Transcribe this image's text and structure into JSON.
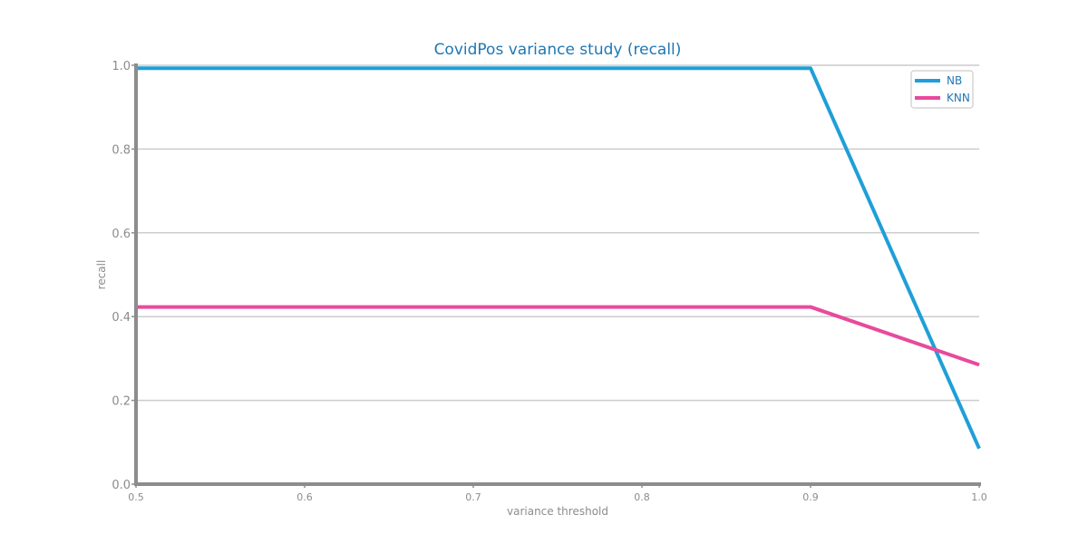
{
  "chart_data": {
    "type": "line",
    "title": "CovidPos variance study (recall)",
    "xlabel": "variance threshold",
    "ylabel": "recall",
    "x": [
      0.5,
      0.6,
      0.7,
      0.8,
      0.9,
      1.0
    ],
    "xlim": [
      0.5,
      1.0
    ],
    "ylim": [
      0.0,
      1.0
    ],
    "xticks": [
      "0.5",
      "0.6",
      "0.7",
      "0.8",
      "0.9",
      "1.0"
    ],
    "yticks": [
      "0.0",
      "0.2",
      "0.4",
      "0.6",
      "0.8",
      "1.0"
    ],
    "grid": "horizontal",
    "legend_position": "top-right",
    "series": [
      {
        "name": "NB",
        "color": "#1f9fd8",
        "values": [
          0.993,
          0.993,
          0.993,
          0.993,
          0.993,
          0.085
        ]
      },
      {
        "name": "KNN",
        "color": "#e84a9c",
        "values": [
          0.423,
          0.423,
          0.423,
          0.423,
          0.423,
          0.285
        ]
      }
    ],
    "colors": {
      "axis": "#8c8c8c",
      "grid": "#cccccc",
      "title": "#1f77b4"
    }
  }
}
